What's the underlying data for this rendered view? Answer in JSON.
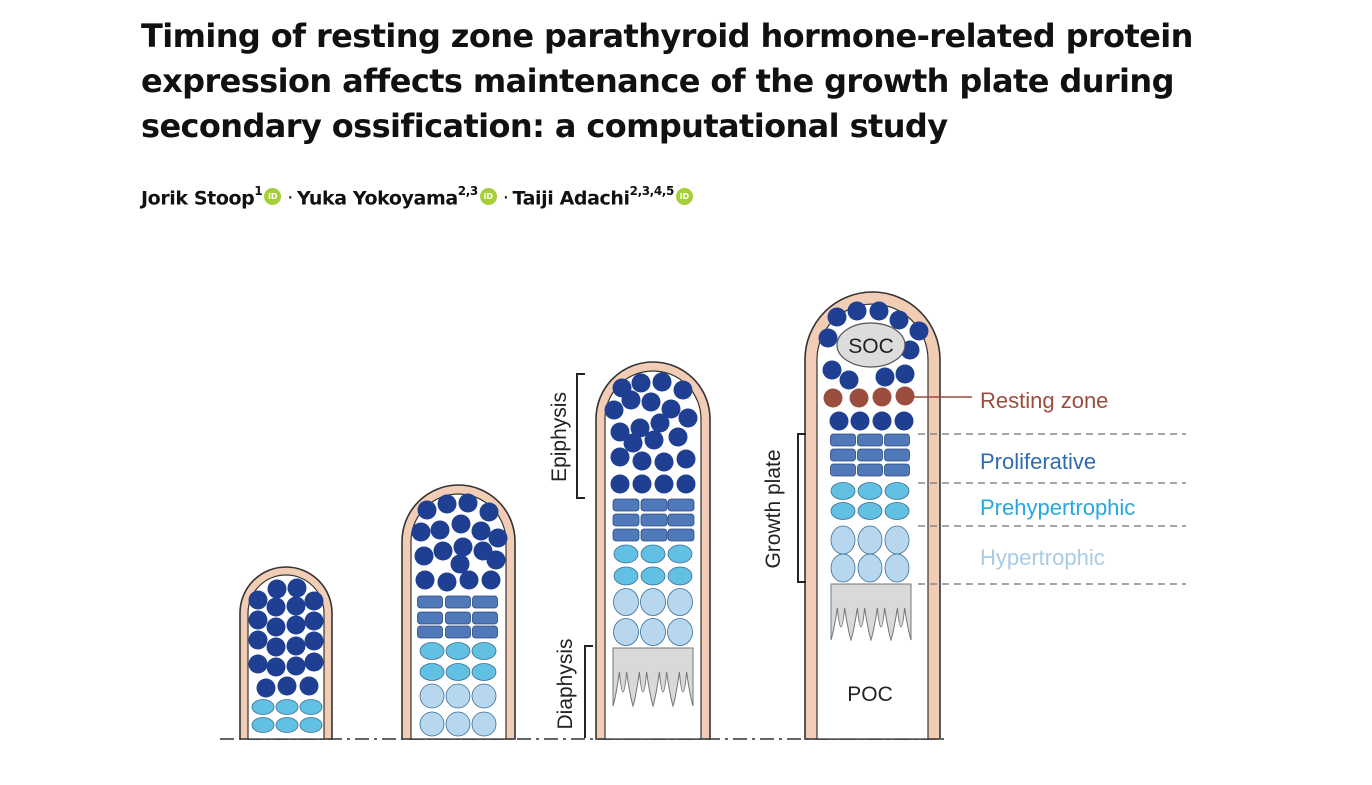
{
  "title": "Timing of resting zone parathyroid hormone-related protein expression affects maintenance of the growth plate during secondary ossification: a computational study",
  "authors": [
    {
      "name": "Jorik Stoop",
      "affil": "1",
      "orcid": "iD"
    },
    {
      "name": "Yuka Yokoyama",
      "affil": "2,3",
      "orcid": "iD"
    },
    {
      "name": "Taiji Adachi",
      "affil": "2,3,4,5",
      "orcid": "iD"
    }
  ],
  "author_separator": "·",
  "figure": {
    "labels": {
      "epiphysis": "Epiphysis",
      "diaphysis": "Diaphysis",
      "growth_plate": "Growth plate",
      "soc": "SOC",
      "poc": "POC",
      "resting_zone": "Resting zone",
      "proliferative": "Proliferative",
      "prehypertrophic": "Prehypertrophic",
      "hypertrophic": "Hypertrophic"
    },
    "colors": {
      "outline": "#f2cdb6",
      "outline_stroke": "#333333",
      "resting_cell": "#1f3f93",
      "resting_zone_cell": "#9b4d3e",
      "proliferative_cell": "#4f79b8",
      "prehypertrophic_cell": "#62c0e3",
      "hypertrophic_cell": "#b6d7ee",
      "ossification": "#d9d9d9",
      "resting_zone_text": "#9b4d3e",
      "proliferative_text": "#2f6bb0",
      "prehypertrophic_text": "#27a8dc",
      "hypertrophic_text": "#a8cbe6"
    }
  }
}
